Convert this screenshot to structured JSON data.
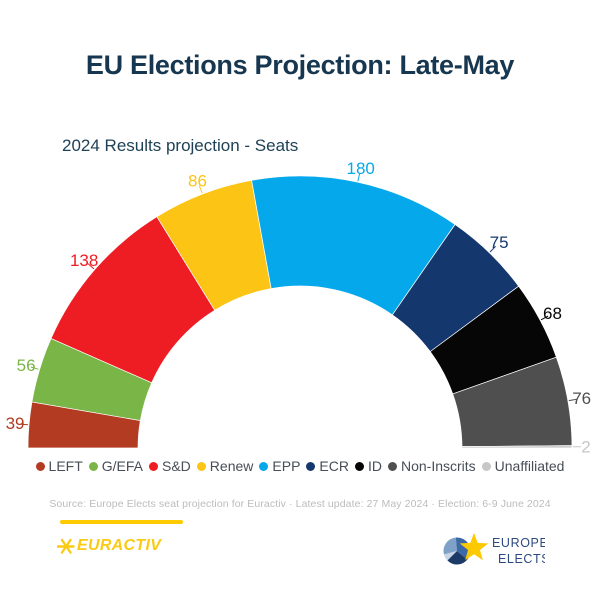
{
  "header": {
    "title": "EU Elections Projection: Late-May"
  },
  "chart_data": {
    "type": "pie",
    "variant": "half-donut",
    "title": "2024 Results projection - Seats",
    "unit": "seats",
    "legend_position": "bottom",
    "categories": [
      "LEFT",
      "G/EFA",
      "S&D",
      "Renew",
      "EPP",
      "ECR",
      "ID",
      "Non-Inscrits",
      "Unaffiliated"
    ],
    "values": [
      39,
      56,
      138,
      86,
      180,
      75,
      68,
      76,
      2
    ],
    "colors": [
      "#b23b21",
      "#7ab547",
      "#ee1d23",
      "#fcc414",
      "#06a8ec",
      "#14386e",
      "#060606",
      "#4f4f4f",
      "#c7c7c7"
    ]
  },
  "footer": {
    "source": "Source: Europe Elects seat projection for Euractiv · Latest update: 27 May 2024 · Election: 6-9 June 2024"
  },
  "logos": {
    "euractiv": {
      "text": "EURACTIV",
      "color": "#fdcb00"
    },
    "europe_elects": {
      "line1": "EUROPE",
      "line2": "ELECTS"
    }
  }
}
